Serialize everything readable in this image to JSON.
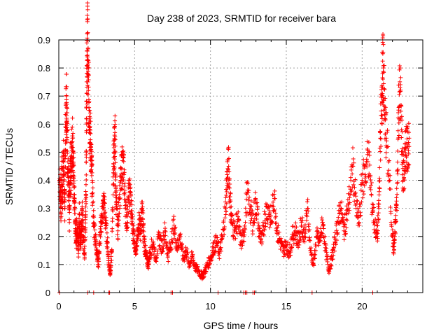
{
  "chart_data": {
    "type": "scatter",
    "title": "Day 238 of 2023, SRMTID for receiver bara",
    "xlabel": "GPS time / hours",
    "ylabel": "SRMTID / TECUs",
    "xlim": [
      0,
      24
    ],
    "ylim": [
      0,
      0.9
    ],
    "xticks": [
      0,
      5,
      10,
      15,
      20
    ],
    "xtick_labels": [
      "0",
      "5",
      "10",
      "15",
      "20"
    ],
    "yticks": [
      0,
      0.1,
      0.2,
      0.3,
      0.4,
      0.5,
      0.6,
      0.7,
      0.8,
      0.9
    ],
    "ytick_labels": [
      "0",
      "0.1",
      "0.2",
      "0.3",
      "0.4",
      "0.5",
      "0.6",
      "0.7",
      "0.8",
      "0.9"
    ],
    "grid": true,
    "marker": "+",
    "color": "#ff0000",
    "series": [
      {
        "name": "SRMTID",
        "points": [
          [
            0.05,
            0.4
          ],
          [
            0.1,
            0.38
          ],
          [
            0.15,
            0.28
          ],
          [
            0.2,
            0.45
          ],
          [
            0.25,
            0.33
          ],
          [
            0.3,
            0.49
          ],
          [
            0.35,
            0.42
          ],
          [
            0.4,
            0.3
          ],
          [
            0.45,
            0.6
          ],
          [
            0.5,
            0.7
          ],
          [
            0.52,
            0.66
          ],
          [
            0.55,
            0.58
          ],
          [
            0.6,
            0.44
          ],
          [
            0.65,
            0.36
          ],
          [
            0.7,
            0.25
          ],
          [
            0.75,
            0.46
          ],
          [
            0.8,
            0.4
          ],
          [
            0.85,
            0.52
          ],
          [
            0.9,
            0.55
          ],
          [
            0.95,
            0.48
          ],
          [
            1.0,
            0.38
          ],
          [
            1.05,
            0.3
          ],
          [
            1.1,
            0.22
          ],
          [
            1.15,
            0.18
          ],
          [
            1.2,
            0.25
          ],
          [
            1.25,
            0.2
          ],
          [
            1.3,
            0.15
          ],
          [
            1.35,
            0.28
          ],
          [
            1.4,
            0.22
          ],
          [
            1.45,
            0.17
          ],
          [
            1.5,
            0.24
          ],
          [
            1.55,
            0.3
          ],
          [
            1.6,
            0.2
          ],
          [
            1.7,
            0.12
          ],
          [
            1.75,
            0.26
          ],
          [
            1.8,
            0.35
          ],
          [
            1.82,
            0.62
          ],
          [
            1.85,
            0.78
          ],
          [
            1.88,
            0.86
          ],
          [
            1.9,
            0.9
          ],
          [
            1.95,
            0.72
          ],
          [
            2.0,
            0.68
          ],
          [
            2.05,
            0.58
          ],
          [
            2.1,
            0.53
          ],
          [
            2.15,
            0.45
          ],
          [
            2.2,
            0.4
          ],
          [
            2.3,
            0.25
          ],
          [
            2.4,
            0.2
          ],
          [
            2.5,
            0.15
          ],
          [
            2.6,
            0.1
          ],
          [
            2.7,
            0.18
          ],
          [
            2.8,
            0.25
          ],
          [
            2.9,
            0.3
          ],
          [
            3.0,
            0.32
          ],
          [
            3.1,
            0.24
          ],
          [
            3.2,
            0.18
          ],
          [
            3.3,
            0.1
          ],
          [
            3.4,
            0.07
          ],
          [
            3.5,
            0.15
          ],
          [
            3.6,
            0.45
          ],
          [
            3.65,
            0.5
          ],
          [
            3.7,
            0.57
          ],
          [
            3.75,
            0.38
          ],
          [
            3.8,
            0.3
          ],
          [
            3.9,
            0.22
          ],
          [
            4.0,
            0.35
          ],
          [
            4.1,
            0.4
          ],
          [
            4.2,
            0.47
          ],
          [
            4.3,
            0.42
          ],
          [
            4.4,
            0.3
          ],
          [
            4.5,
            0.25
          ],
          [
            4.6,
            0.34
          ],
          [
            4.7,
            0.36
          ],
          [
            4.8,
            0.28
          ],
          [
            4.9,
            0.22
          ],
          [
            5.0,
            0.18
          ],
          [
            5.1,
            0.15
          ],
          [
            5.2,
            0.2
          ],
          [
            5.3,
            0.26
          ],
          [
            5.4,
            0.22
          ],
          [
            5.5,
            0.3
          ],
          [
            5.6,
            0.2
          ],
          [
            5.7,
            0.15
          ],
          [
            5.8,
            0.12
          ],
          [
            5.9,
            0.1
          ],
          [
            6.0,
            0.14
          ],
          [
            6.2,
            0.18
          ],
          [
            6.4,
            0.12
          ],
          [
            6.6,
            0.2
          ],
          [
            6.8,
            0.16
          ],
          [
            7.0,
            0.22
          ],
          [
            7.2,
            0.13
          ],
          [
            7.4,
            0.18
          ],
          [
            7.6,
            0.24
          ],
          [
            7.8,
            0.16
          ],
          [
            8.0,
            0.2
          ],
          [
            8.2,
            0.12
          ],
          [
            8.4,
            0.15
          ],
          [
            8.6,
            0.1
          ],
          [
            8.8,
            0.13
          ],
          [
            9.0,
            0.09
          ],
          [
            9.2,
            0.08
          ],
          [
            9.4,
            0.06
          ],
          [
            9.6,
            0.07
          ],
          [
            9.8,
            0.1
          ],
          [
            10.0,
            0.12
          ],
          [
            10.2,
            0.16
          ],
          [
            10.4,
            0.18
          ],
          [
            10.6,
            0.14
          ],
          [
            10.8,
            0.2
          ],
          [
            11.0,
            0.3
          ],
          [
            11.1,
            0.42
          ],
          [
            11.2,
            0.45
          ],
          [
            11.3,
            0.33
          ],
          [
            11.4,
            0.25
          ],
          [
            11.6,
            0.22
          ],
          [
            11.8,
            0.26
          ],
          [
            12.0,
            0.18
          ],
          [
            12.2,
            0.2
          ],
          [
            12.4,
            0.35
          ],
          [
            12.6,
            0.3
          ],
          [
            12.8,
            0.25
          ],
          [
            13.0,
            0.33
          ],
          [
            13.2,
            0.22
          ],
          [
            13.4,
            0.18
          ],
          [
            13.6,
            0.28
          ],
          [
            13.8,
            0.3
          ],
          [
            14.0,
            0.25
          ],
          [
            14.2,
            0.35
          ],
          [
            14.4,
            0.22
          ],
          [
            14.6,
            0.18
          ],
          [
            14.8,
            0.15
          ],
          [
            15.0,
            0.17
          ],
          [
            15.2,
            0.14
          ],
          [
            15.4,
            0.2
          ],
          [
            15.6,
            0.22
          ],
          [
            15.8,
            0.18
          ],
          [
            16.0,
            0.25
          ],
          [
            16.2,
            0.2
          ],
          [
            16.4,
            0.3
          ],
          [
            16.6,
            0.15
          ],
          [
            16.8,
            0.1
          ],
          [
            17.0,
            0.2
          ],
          [
            17.2,
            0.18
          ],
          [
            17.4,
            0.25
          ],
          [
            17.6,
            0.15
          ],
          [
            17.8,
            0.08
          ],
          [
            18.0,
            0.12
          ],
          [
            18.2,
            0.18
          ],
          [
            18.4,
            0.25
          ],
          [
            18.6,
            0.3
          ],
          [
            18.8,
            0.22
          ],
          [
            19.0,
            0.28
          ],
          [
            19.2,
            0.35
          ],
          [
            19.4,
            0.45
          ],
          [
            19.6,
            0.3
          ],
          [
            19.8,
            0.25
          ],
          [
            20.0,
            0.4
          ],
          [
            20.2,
            0.42
          ],
          [
            20.4,
            0.5
          ],
          [
            20.6,
            0.35
          ],
          [
            20.8,
            0.25
          ],
          [
            21.0,
            0.2
          ],
          [
            21.1,
            0.3
          ],
          [
            21.2,
            0.55
          ],
          [
            21.3,
            0.7
          ],
          [
            21.35,
            0.78
          ],
          [
            21.4,
            0.8
          ],
          [
            21.5,
            0.62
          ],
          [
            21.6,
            0.55
          ],
          [
            21.8,
            0.4
          ],
          [
            22.0,
            0.2
          ],
          [
            22.1,
            0.15
          ],
          [
            22.2,
            0.25
          ],
          [
            22.3,
            0.35
          ],
          [
            22.4,
            0.65
          ],
          [
            22.5,
            0.73
          ],
          [
            22.6,
            0.58
          ],
          [
            22.7,
            0.4
          ],
          [
            22.8,
            0.45
          ],
          [
            22.9,
            0.53
          ],
          [
            23.0,
            0.52
          ],
          [
            23.1,
            0.55
          ]
        ],
        "zero_points": [
          0.05,
          1.9,
          2.3,
          3.3,
          3.35,
          7.4,
          7.5,
          10.5,
          12.2,
          12.3,
          12.4,
          12.8,
          12.9,
          16.7,
          20.7
        ]
      }
    ]
  }
}
